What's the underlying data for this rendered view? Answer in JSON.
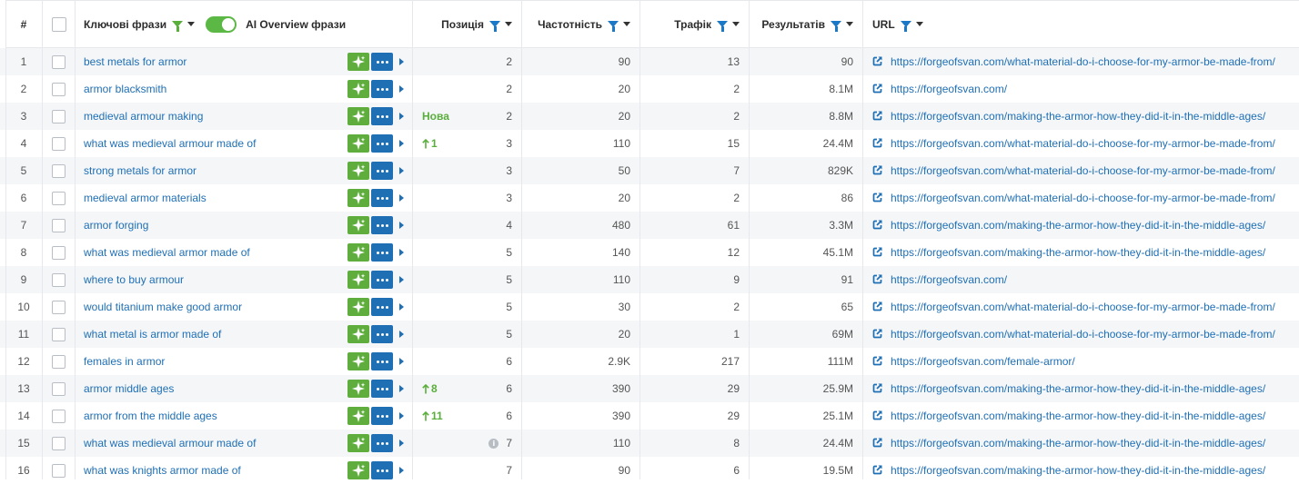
{
  "header": {
    "num": "#",
    "keywords": "Ключові фрази",
    "ai_overview": "AI Overview фрази",
    "position": "Позиція",
    "frequency": "Частотність",
    "traffic": "Трафік",
    "results": "Результатів",
    "url": "URL"
  },
  "ai_overview_toggle": "on",
  "colors": {
    "link": "#1f6fb5",
    "green": "#5aae3c",
    "ai_button": "#5fae3d",
    "more_button": "#1f6fb5"
  },
  "rows": [
    {
      "num": "1",
      "keyword": "best metals for armor",
      "badge": "",
      "position": "2",
      "frequency": "90",
      "traffic": "13",
      "results": "90",
      "url": "https://forgeofsvan.com/what-material-do-i-choose-for-my-armor-be-made-from/"
    },
    {
      "num": "2",
      "keyword": "armor blacksmith",
      "badge": "",
      "position": "2",
      "frequency": "20",
      "traffic": "2",
      "results": "8.1M",
      "url": "https://forgeofsvan.com/"
    },
    {
      "num": "3",
      "keyword": "medieval armour making",
      "badge": "Нова",
      "position": "2",
      "frequency": "20",
      "traffic": "2",
      "results": "8.8M",
      "url": "https://forgeofsvan.com/making-the-armor-how-they-did-it-in-the-middle-ages/"
    },
    {
      "num": "4",
      "keyword": "what was medieval armour made of",
      "badge": "1",
      "position": "3",
      "frequency": "110",
      "traffic": "15",
      "results": "24.4M",
      "url": "https://forgeofsvan.com/what-material-do-i-choose-for-my-armor-be-made-from/"
    },
    {
      "num": "5",
      "keyword": "strong metals for armor",
      "badge": "",
      "position": "3",
      "frequency": "50",
      "traffic": "7",
      "results": "829K",
      "url": "https://forgeofsvan.com/what-material-do-i-choose-for-my-armor-be-made-from/"
    },
    {
      "num": "6",
      "keyword": "medieval armor materials",
      "badge": "",
      "position": "3",
      "frequency": "20",
      "traffic": "2",
      "results": "86",
      "url": "https://forgeofsvan.com/what-material-do-i-choose-for-my-armor-be-made-from/"
    },
    {
      "num": "7",
      "keyword": "armor forging",
      "badge": "",
      "position": "4",
      "frequency": "480",
      "traffic": "61",
      "results": "3.3M",
      "url": "https://forgeofsvan.com/making-the-armor-how-they-did-it-in-the-middle-ages/"
    },
    {
      "num": "8",
      "keyword": "what was medieval armor made of",
      "badge": "",
      "position": "5",
      "frequency": "140",
      "traffic": "12",
      "results": "45.1M",
      "url": "https://forgeofsvan.com/making-the-armor-how-they-did-it-in-the-middle-ages/"
    },
    {
      "num": "9",
      "keyword": "where to buy armour",
      "badge": "",
      "position": "5",
      "frequency": "110",
      "traffic": "9",
      "results": "91",
      "url": "https://forgeofsvan.com/"
    },
    {
      "num": "10",
      "keyword": "would titanium make good armor",
      "badge": "",
      "position": "5",
      "frequency": "30",
      "traffic": "2",
      "results": "65",
      "url": "https://forgeofsvan.com/what-material-do-i-choose-for-my-armor-be-made-from/"
    },
    {
      "num": "11",
      "keyword": "what metal is armor made of",
      "badge": "",
      "position": "5",
      "frequency": "20",
      "traffic": "1",
      "results": "69M",
      "url": "https://forgeofsvan.com/what-material-do-i-choose-for-my-armor-be-made-from/"
    },
    {
      "num": "12",
      "keyword": "females in armor",
      "badge": "",
      "position": "6",
      "frequency": "2.9K",
      "traffic": "217",
      "results": "111M",
      "url": "https://forgeofsvan.com/female-armor/"
    },
    {
      "num": "13",
      "keyword": "armor middle ages",
      "badge": "8",
      "position": "6",
      "frequency": "390",
      "traffic": "29",
      "results": "25.9M",
      "url": "https://forgeofsvan.com/making-the-armor-how-they-did-it-in-the-middle-ages/"
    },
    {
      "num": "14",
      "keyword": "armor from the middle ages",
      "badge": "11",
      "position": "6",
      "frequency": "390",
      "traffic": "29",
      "results": "25.1M",
      "url": "https://forgeofsvan.com/making-the-armor-how-they-did-it-in-the-middle-ages/"
    },
    {
      "num": "15",
      "keyword": "what was medieval armour made of",
      "badge": "",
      "position": "7",
      "frequency": "110",
      "traffic": "8",
      "results": "24.4M",
      "url": "https://forgeofsvan.com/making-the-armor-how-they-did-it-in-the-middle-ages/"
    },
    {
      "num": "16",
      "keyword": "what was knights armor made of",
      "badge": "",
      "position": "7",
      "frequency": "90",
      "traffic": "6",
      "results": "19.5M",
      "url": "https://forgeofsvan.com/making-the-armor-how-they-did-it-in-the-middle-ages/"
    }
  ]
}
